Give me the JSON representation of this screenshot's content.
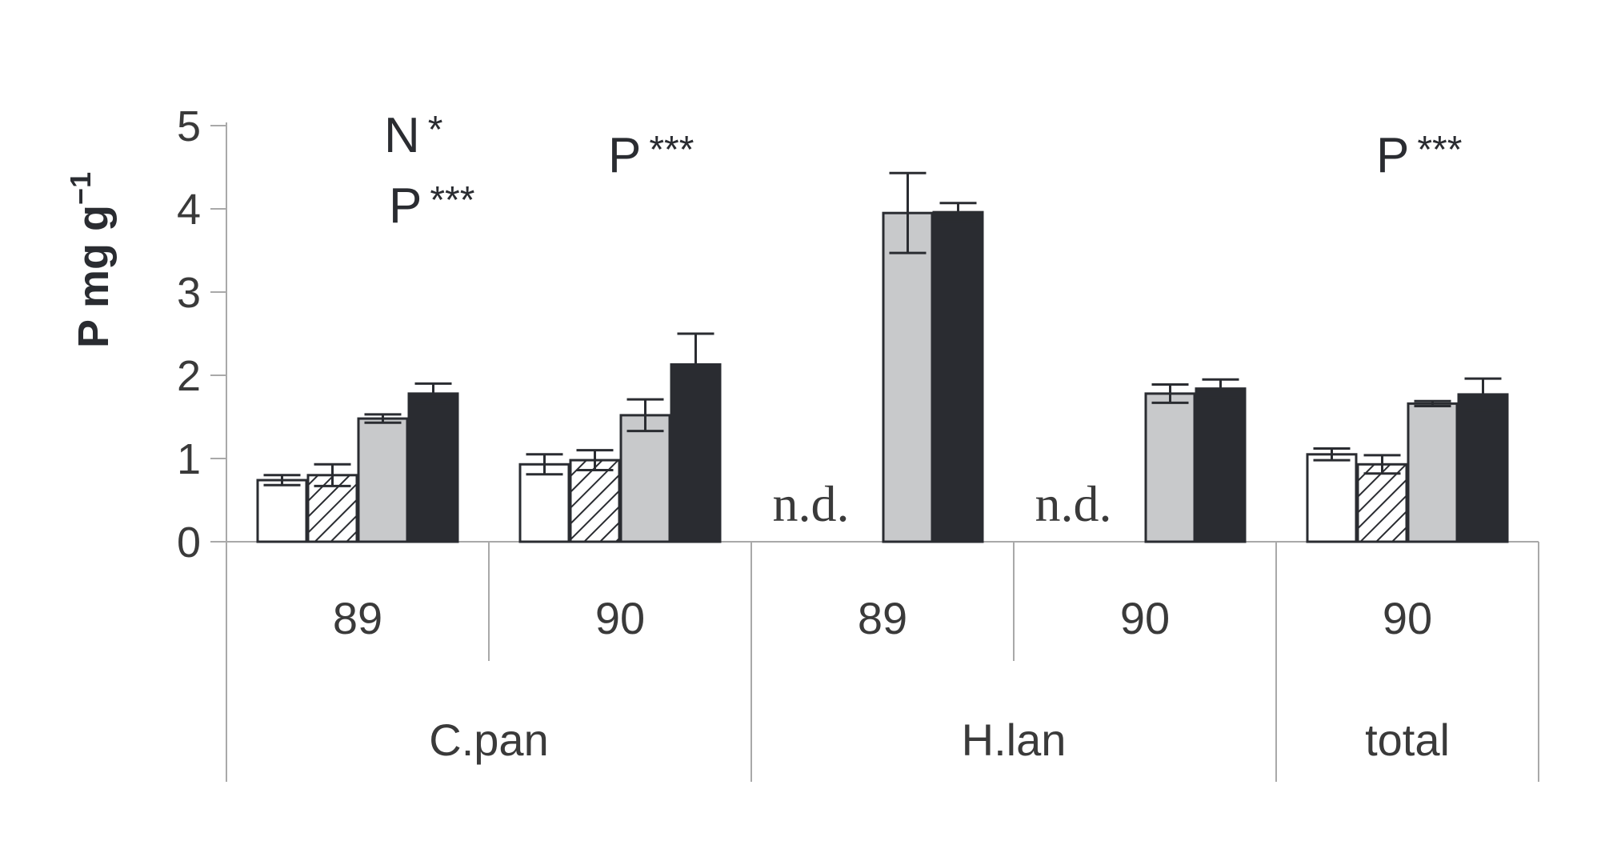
{
  "chart_data": {
    "type": "bar",
    "ylabel": "P mg g",
    "ylabel_superscript": "−1",
    "ylim": [
      0,
      5
    ],
    "yticks": [
      "0",
      "1",
      "2",
      "3",
      "4",
      "5"
    ],
    "grid": false,
    "legend": "none",
    "groups": [
      {
        "species": "C.pan",
        "years": [
          "89",
          "90"
        ]
      },
      {
        "species": "H.lan",
        "years": [
          "89",
          "90"
        ]
      },
      {
        "species": "total",
        "years": [
          "90"
        ]
      }
    ],
    "categories": [
      "89",
      "90",
      "89",
      "90",
      "90"
    ],
    "series": [
      {
        "fill": "white",
        "color": "#ffffff",
        "values": [
          0.74,
          0.93,
          null,
          null,
          1.05
        ],
        "errors": [
          0.06,
          0.12,
          null,
          null,
          0.07
        ]
      },
      {
        "fill": "hatched",
        "color": "#ffffff",
        "values": [
          0.8,
          0.98,
          null,
          null,
          0.93
        ],
        "errors": [
          0.13,
          0.12,
          null,
          null,
          0.11
        ]
      },
      {
        "fill": "grey",
        "color": "#c8c9cb",
        "values": [
          1.48,
          1.52,
          3.95,
          1.78,
          1.66
        ],
        "errors": [
          0.05,
          0.19,
          0.48,
          0.11,
          0.03
        ]
      },
      {
        "fill": "black",
        "color": "#2a2c31",
        "values": [
          1.78,
          2.13,
          3.96,
          1.84,
          1.77
        ],
        "errors": [
          0.12,
          0.37,
          0.11,
          0.11,
          0.19
        ]
      }
    ],
    "nd_label": "n.d.",
    "nd_categories": [
      2,
      3
    ],
    "annotations": [
      {
        "category": 0,
        "lines": [
          {
            "letter": "N",
            "stars": "*"
          },
          {
            "letter": "P",
            "stars": "***"
          }
        ]
      },
      {
        "category": 1,
        "lines": [
          {
            "letter": "P",
            "stars": "***"
          }
        ]
      },
      {
        "category": 4,
        "lines": [
          {
            "letter": "P",
            "stars": "***"
          }
        ]
      }
    ]
  }
}
